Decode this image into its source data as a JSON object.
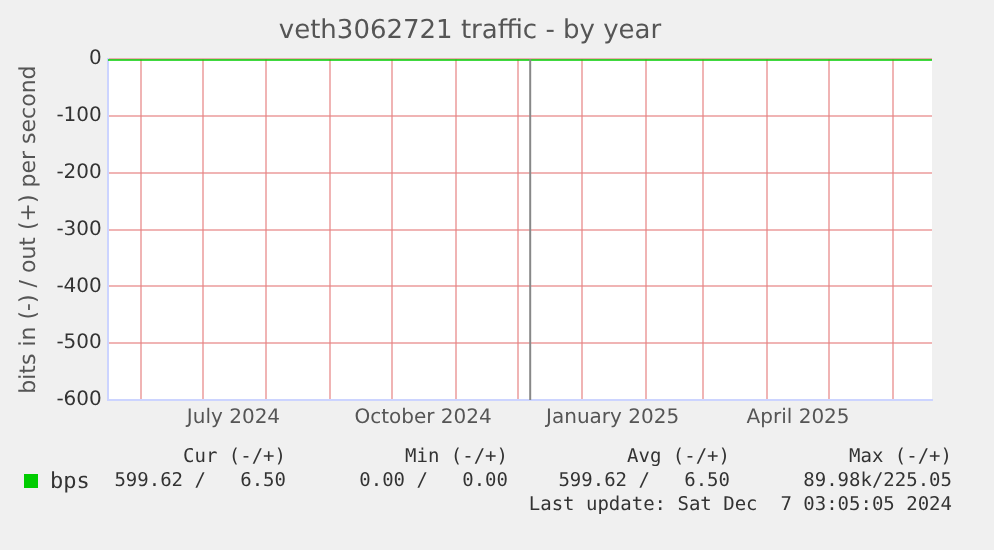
{
  "chart_data": {
    "type": "line",
    "title": "veth3062721 traffic - by year",
    "ylabel": "bits in (-) / out (+) per second",
    "x": [
      "2024-05-16",
      "2025-06-20"
    ],
    "series": [
      {
        "name": "bps",
        "color": "#00cc00",
        "values": [
          0,
          0
        ]
      }
    ],
    "xlim": [
      "2024-05-16",
      "2025-06-20"
    ],
    "xticks": [
      {
        "value": "2024-06-01",
        "label": null
      },
      {
        "value": "2024-07-01",
        "label": null
      },
      {
        "value": "2024-07-16",
        "label": "July 2024"
      },
      {
        "value": "2024-08-01",
        "label": null
      },
      {
        "value": "2024-09-01",
        "label": null
      },
      {
        "value": "2024-10-01",
        "label": null
      },
      {
        "value": "2024-10-16",
        "label": "October 2024"
      },
      {
        "value": "2024-11-01",
        "label": null
      },
      {
        "value": "2024-12-01",
        "label": null
      },
      {
        "value": "2025-01-01",
        "label": null
      },
      {
        "value": "2025-01-16",
        "label": "January 2025"
      },
      {
        "value": "2025-02-01",
        "label": null
      },
      {
        "value": "2025-03-01",
        "label": null
      },
      {
        "value": "2025-04-01",
        "label": null
      },
      {
        "value": "2025-04-16",
        "label": "April 2025"
      },
      {
        "value": "2025-05-01",
        "label": null
      },
      {
        "value": "2025-06-01",
        "label": null
      }
    ],
    "ylim": [
      -600,
      0
    ],
    "yticks": [
      -600,
      -500,
      -400,
      -300,
      -200,
      -100,
      0
    ],
    "ref_lines": [
      {
        "axis": "x",
        "value": "2024-12-07",
        "color": "#888888"
      }
    ],
    "grid": true,
    "legend": "bottom",
    "marker": "none",
    "line_style": "solid",
    "annotations": [
      "Cur (-/+)",
      "Min (-/+)",
      "Avg (-/+)",
      "Max (-/+)",
      "599.62 /   6.50",
      "0.00 /   0.00",
      "599.62 /   6.50",
      "89.98k/225.05",
      "Last update: Sat Dec  7 03:05:05 2024"
    ]
  }
}
